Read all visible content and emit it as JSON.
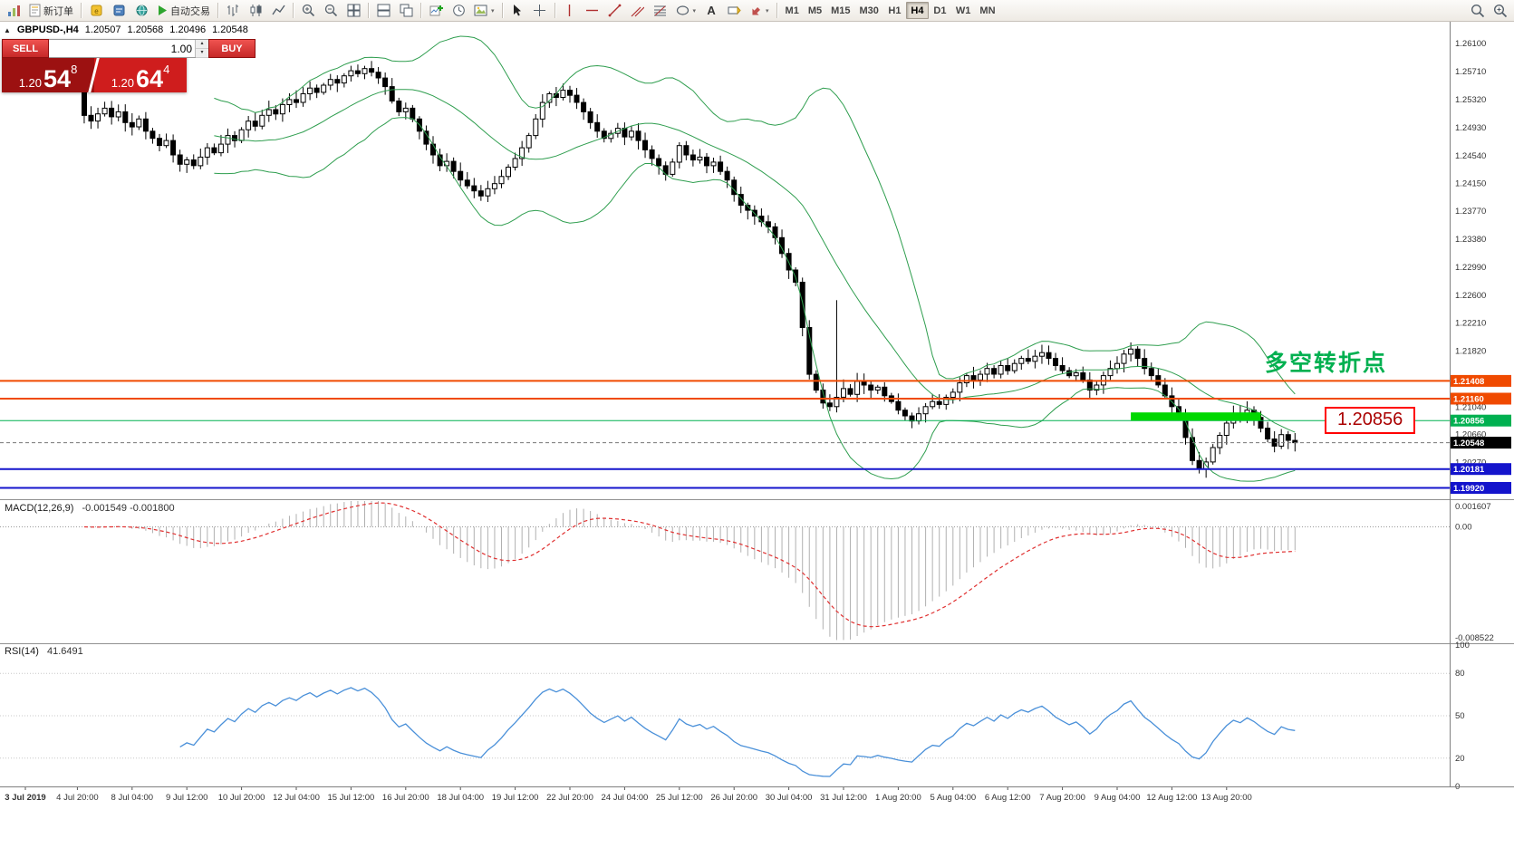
{
  "toolbar": {
    "new_order": "新订单",
    "autotrading": "自动交易",
    "timeframes": [
      "M1",
      "M5",
      "M15",
      "M30",
      "H1",
      "H4",
      "D1",
      "W1",
      "MN"
    ],
    "active_timeframe": "H4"
  },
  "icons": {
    "collapse": "▲",
    "spin_up": "▴",
    "spin_down": "▾",
    "caret": "▾",
    "text_tool": "A"
  },
  "quote": {
    "symbol": "GBPUSD-,H4",
    "open": "1.20507",
    "high": "1.20568",
    "low": "1.20496",
    "close": "1.20548"
  },
  "trade": {
    "sell": {
      "label": "SELL",
      "price_main": "1.20",
      "price_big": "54",
      "price_sup": "8"
    },
    "buy": {
      "label": "BUY",
      "price_main": "1.20",
      "price_big": "64",
      "price_sup": "4"
    },
    "volume": "1.00"
  },
  "annotation": {
    "text": "多空转折点",
    "color": "#00b050"
  },
  "big_label": {
    "text": "1.20856",
    "border_color": "#ff0000",
    "text_color": "#aa0000"
  },
  "indicators": {
    "macd": {
      "title": "MACD(12,26,9)",
      "values": "-0.001549 -0.001800"
    },
    "rsi": {
      "title": "RSI(14)",
      "value": "41.6491"
    }
  },
  "chart_data": {
    "type": "candlestick",
    "symbol": "GBPUSD-",
    "timeframe": "H4",
    "price_range": [
      1.19762,
      1.26402
    ],
    "first_open": 1.2548,
    "closes": [
      1.251,
      1.2502,
      1.2512,
      1.252,
      1.2508,
      1.2515,
      1.25,
      1.2494,
      1.2505,
      1.2488,
      1.2478,
      1.2468,
      1.2475,
      1.2455,
      1.2442,
      1.2448,
      1.244,
      1.2452,
      1.2465,
      1.2458,
      1.247,
      1.2482,
      1.2475,
      1.249,
      1.2502,
      1.2495,
      1.251,
      1.2518,
      1.2512,
      1.2525,
      1.2532,
      1.2528,
      1.254,
      1.2548,
      1.2542,
      1.2552,
      1.256,
      1.2555,
      1.2565,
      1.2572,
      1.2568,
      1.2575,
      1.257,
      1.2562,
      1.255,
      1.253,
      1.2515,
      1.252,
      1.2505,
      1.2488,
      1.247,
      1.2455,
      1.244,
      1.2446,
      1.2432,
      1.242,
      1.2412,
      1.2405,
      1.2398,
      1.2408,
      1.2415,
      1.2425,
      1.2438,
      1.245,
      1.2465,
      1.2482,
      1.2505,
      1.2528,
      1.254,
      1.2535,
      1.2545,
      1.2538,
      1.2528,
      1.2515,
      1.25,
      1.2488,
      1.2478,
      1.2485,
      1.2492,
      1.248,
      1.2488,
      1.2475,
      1.2462,
      1.245,
      1.244,
      1.2428,
      1.2445,
      1.2468,
      1.2455,
      1.2448,
      1.2452,
      1.244,
      1.2445,
      1.2432,
      1.242,
      1.24,
      1.2385,
      1.2378,
      1.237,
      1.2362,
      1.2355,
      1.234,
      1.2318,
      1.2295,
      1.2278,
      1.2215,
      1.215,
      1.2128,
      1.211,
      1.2105,
      1.2118,
      1.213,
      1.2122,
      1.214,
      1.2135,
      1.2128,
      1.2132,
      1.212,
      1.2112,
      1.21,
      1.2092,
      1.2085,
      1.2095,
      1.2105,
      1.2112,
      1.2108,
      1.2118,
      1.2125,
      1.2138,
      1.2148,
      1.2142,
      1.215,
      1.2158,
      1.215,
      1.2162,
      1.2155,
      1.2165,
      1.2172,
      1.2168,
      1.2175,
      1.218,
      1.2172,
      1.2162,
      1.2155,
      1.2148,
      1.2152,
      1.2142,
      1.2128,
      1.2135,
      1.2148,
      1.2158,
      1.2165,
      1.2178,
      1.2185,
      1.2172,
      1.2158,
      1.2148,
      1.2135,
      1.212,
      1.2105,
      1.2092,
      1.2062,
      1.203,
      1.2018,
      1.2028,
      1.2048,
      1.2065,
      1.2082,
      1.2095,
      1.2088,
      1.21,
      1.209,
      1.2075,
      1.206,
      1.205,
      1.2066,
      1.2058,
      1.20548
    ],
    "wick_overrides": {
      "110": {
        "up": 0.0135
      },
      "121": {
        "down": 0.001
      },
      "163": {
        "down": 0.0006
      }
    },
    "bollinger": {
      "period": 20,
      "deviation": 2,
      "color": "#2f9e4f"
    },
    "lines": [
      {
        "price": 1.21408,
        "label": "1.21408",
        "color": "#f04a00",
        "width": 2
      },
      {
        "price": 1.2116,
        "label": "1.21160",
        "color": "#f04a00",
        "width": 2
      },
      {
        "price": 1.20856,
        "label": "1.20856",
        "color": "#00b050",
        "width": 1
      },
      {
        "price": 1.20181,
        "label": "1.20181",
        "color": "#1414cc",
        "width": 2
      },
      {
        "price": 1.1992,
        "label": "1.19920",
        "color": "#1414cc",
        "width": 2
      }
    ],
    "zone": {
      "price": 1.20856,
      "from_bar": 162,
      "to_bar": 181,
      "color": "#00d800",
      "thickness": 9
    },
    "current_price": {
      "price": 1.20548,
      "label": "1.20548",
      "color": "#000000"
    },
    "price_axis_ticks": [
      "1.26100",
      "1.25710",
      "1.25320",
      "1.24930",
      "1.24540",
      "1.24150",
      "1.23770",
      "1.23380",
      "1.22990",
      "1.22600",
      "1.22210",
      "1.21820",
      "1.21430",
      "1.21040",
      "1.20660",
      "1.20270",
      "1.19880"
    ],
    "macd": {
      "params": [
        12,
        26,
        9
      ],
      "range": [
        -0.009,
        0.002
      ],
      "axis": [
        "0.001607",
        "0.00",
        "-0.008522"
      ],
      "histogram_color": "#b0b0b0",
      "signal_color": "#e03030"
    },
    "rsi": {
      "period": 14,
      "axis": [
        "100",
        "80",
        "50",
        "20",
        "0"
      ],
      "levels": [
        80,
        50,
        20
      ],
      "color": "#4a90d9"
    },
    "x_axis": {
      "bars_per_label": 8,
      "labels": [
        "3 Jul 2019",
        "4 Jul 20:00",
        "8 Jul 04:00",
        "9 Jul 12:00",
        "10 Jul 20:00",
        "12 Jul 04:00",
        "15 Jul 12:00",
        "16 Jul 20:00",
        "18 Jul 04:00",
        "19 Jul 12:00",
        "22 Jul 20:00",
        "24 Jul 04:00",
        "25 Jul 12:00",
        "26 Jul 20:00",
        "30 Jul 04:00",
        "31 Jul 12:00",
        "1 Aug 20:00",
        "5 Aug 04:00",
        "6 Aug 12:00",
        "7 Aug 20:00",
        "9 Aug 04:00",
        "12 Aug 12:00",
        "13 Aug 20:00"
      ]
    }
  }
}
